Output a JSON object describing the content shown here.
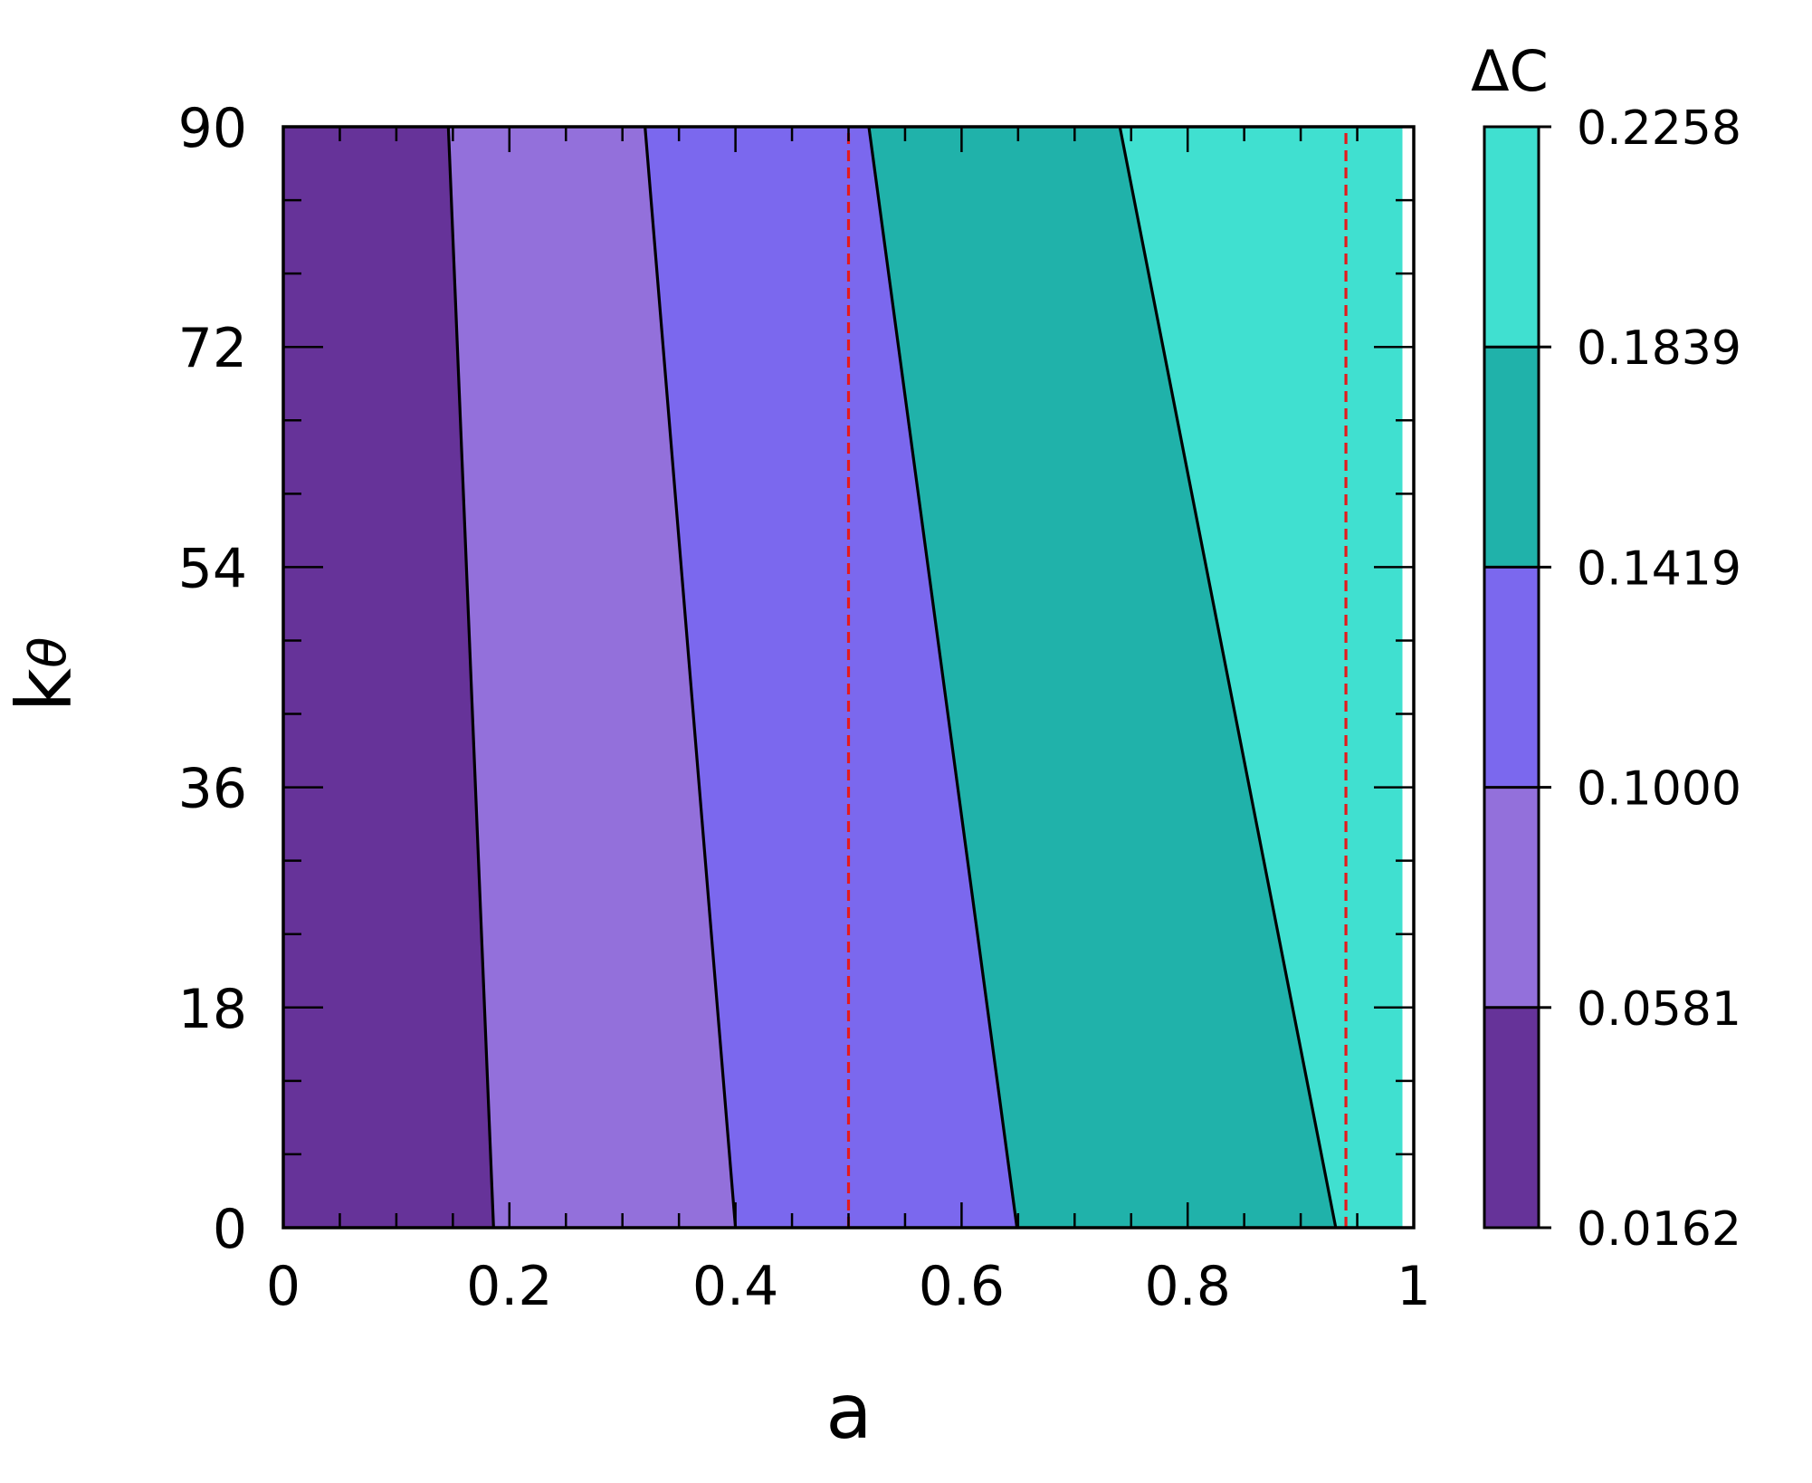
{
  "chart_data": {
    "type": "contour",
    "xlabel": "a",
    "ylabel": "k",
    "ylabel_sub": "θ",
    "xlim": [
      0,
      1
    ],
    "ylim": [
      0,
      90
    ],
    "x_ticks": [
      0,
      0.2,
      0.4,
      0.6,
      0.8,
      1
    ],
    "x_tick_labels": [
      "0",
      "0.2",
      "0.4",
      "0.6",
      "0.8",
      "1"
    ],
    "y_ticks": [
      0,
      18,
      36,
      54,
      72,
      90
    ],
    "y_tick_labels": [
      "0",
      "18",
      "36",
      "54",
      "72",
      "90"
    ],
    "colorbar": {
      "title": "ΔC",
      "levels": [
        0.0162,
        0.0581,
        0.1,
        0.1419,
        0.1839,
        0.2258
      ],
      "level_labels": [
        "0.0162",
        "0.0581",
        "0.1000",
        "0.1419",
        "0.1839",
        "0.2258"
      ],
      "colors": [
        "#663399",
        "#9370DB",
        "#7B68EE",
        "#20B2AA",
        "#40E0D0"
      ]
    },
    "contour_lines": [
      {
        "level": 0.0581,
        "points": [
          [
            0.186,
            0
          ],
          [
            0.146,
            90
          ]
        ]
      },
      {
        "level": 0.1,
        "points": [
          [
            0.4,
            0
          ],
          [
            0.32,
            90
          ]
        ]
      },
      {
        "level": 0.1419,
        "points": [
          [
            0.649,
            0
          ],
          [
            0.518,
            90
          ]
        ]
      },
      {
        "level": 0.1839,
        "points": [
          [
            0.931,
            0
          ],
          [
            0.74,
            90
          ]
        ]
      }
    ],
    "data_extent_x": 0.99,
    "reference_lines": [
      {
        "x": 0.5,
        "color": "#e41a1c",
        "style": "dashed"
      },
      {
        "x": 0.94,
        "color": "#e41a1c",
        "style": "dashed"
      }
    ]
  }
}
